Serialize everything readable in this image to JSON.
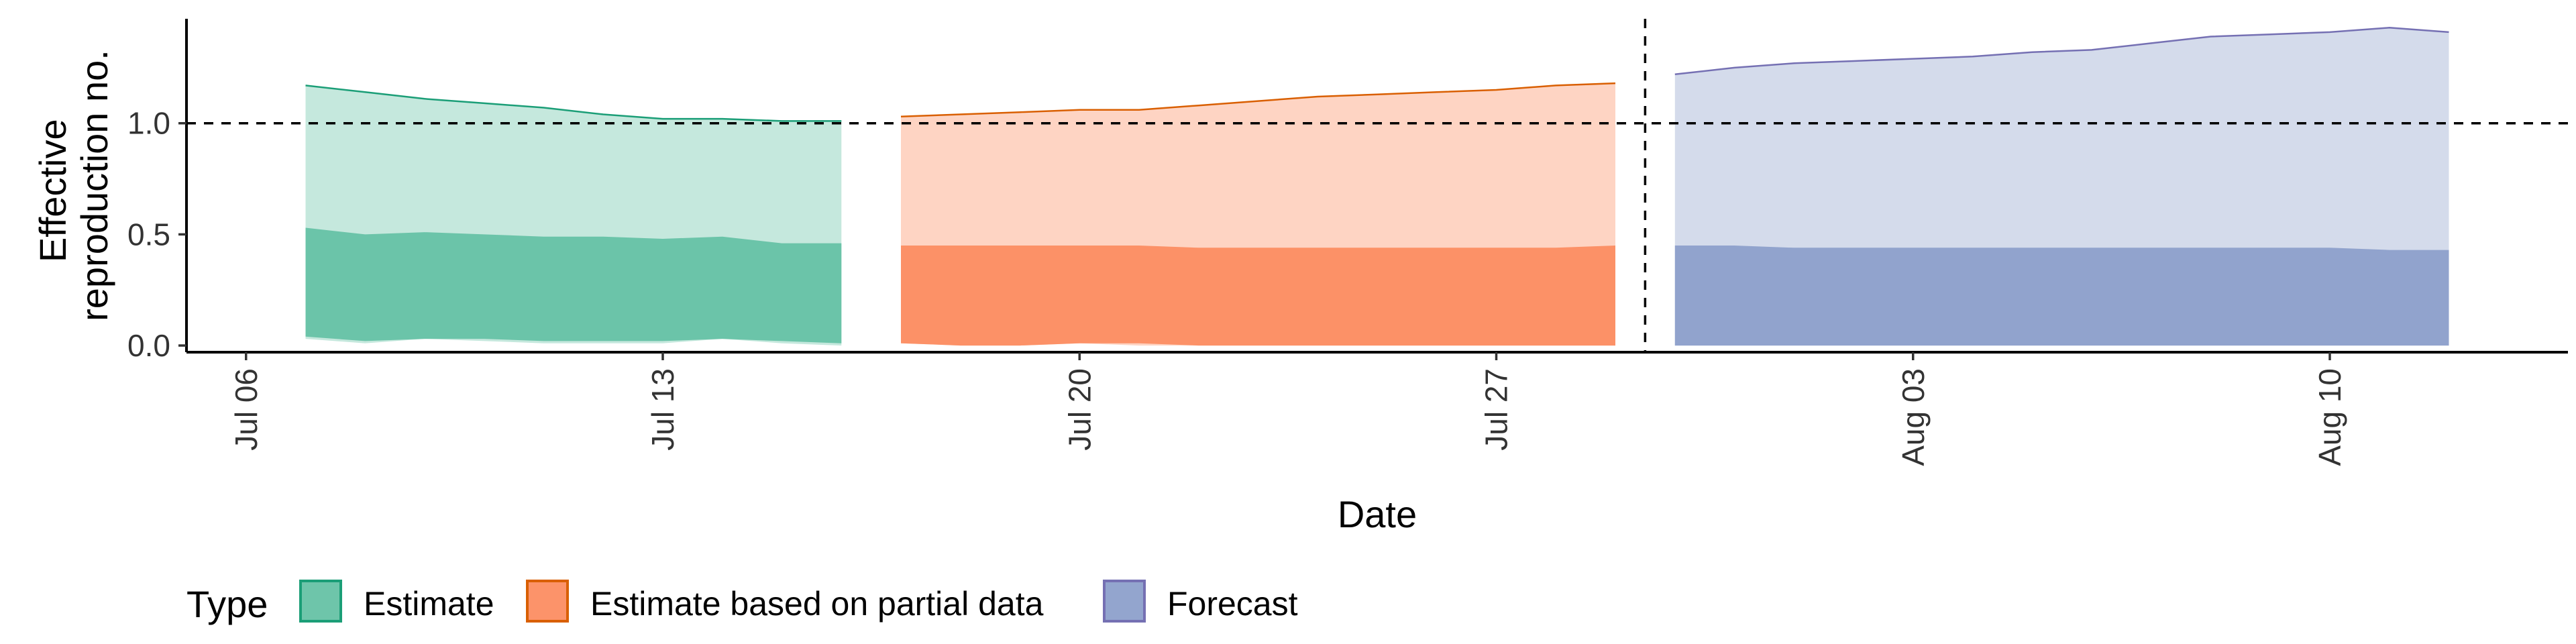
{
  "chart_data": {
    "type": "area",
    "xlabel": "Date",
    "ylabel_lines": [
      "Effective",
      "reproduction no."
    ],
    "x_ticks": [
      "Jul 06",
      "Jul 13",
      "Jul 20",
      "Jul 27",
      "Aug 03",
      "Aug 10"
    ],
    "x_tick_dates": [
      "2020-07-06",
      "2020-07-13",
      "2020-07-20",
      "2020-07-27",
      "2020-08-03",
      "2020-08-10"
    ],
    "x_range": [
      "2020-07-05",
      "2020-08-14"
    ],
    "y_ticks": [
      "0.0",
      "0.5",
      "1.0"
    ],
    "y_tick_values": [
      0.0,
      0.5,
      1.0
    ],
    "ylim": [
      -0.03,
      1.47
    ],
    "reference_line_y": 1.0,
    "forecast_boundary_date": "2020-07-29",
    "legend": {
      "title": "Type",
      "position": "bottom",
      "items": [
        "Estimate",
        "Estimate based on partial data",
        "Forecast"
      ]
    },
    "series": [
      {
        "name": "Estimate",
        "fill_color": "#66c2a5",
        "line_color": "#1b9e77",
        "dates": [
          "2020-07-07",
          "2020-07-08",
          "2020-07-09",
          "2020-07-10",
          "2020-07-11",
          "2020-07-12",
          "2020-07-13",
          "2020-07-14",
          "2020-07-15",
          "2020-07-16"
        ],
        "outer_upper": [
          1.17,
          1.14,
          1.11,
          1.09,
          1.07,
          1.04,
          1.02,
          1.02,
          1.01,
          1.01
        ],
        "outer_lower": [
          0.03,
          0.01,
          0.03,
          0.02,
          0.01,
          0.01,
          0.01,
          0.03,
          0.01,
          0.0
        ],
        "inner_upper": [
          0.53,
          0.5,
          0.51,
          0.5,
          0.49,
          0.49,
          0.48,
          0.49,
          0.46,
          0.46
        ],
        "inner_lower": [
          0.04,
          0.02,
          0.03,
          0.03,
          0.02,
          0.02,
          0.02,
          0.03,
          0.02,
          0.01
        ]
      },
      {
        "name": "Estimate based on partial data",
        "fill_color": "#fc8d62",
        "line_color": "#d95f02",
        "dates": [
          "2020-07-17",
          "2020-07-18",
          "2020-07-19",
          "2020-07-20",
          "2020-07-21",
          "2020-07-22",
          "2020-07-23",
          "2020-07-24",
          "2020-07-25",
          "2020-07-26",
          "2020-07-27",
          "2020-07-28",
          "2020-07-29"
        ],
        "outer_upper": [
          1.03,
          1.04,
          1.05,
          1.06,
          1.06,
          1.08,
          1.1,
          1.12,
          1.13,
          1.14,
          1.15,
          1.17,
          1.18
        ],
        "outer_lower": [
          0.01,
          0.0,
          0.0,
          0.01,
          0.0,
          0.0,
          0.0,
          0.0,
          0.0,
          0.0,
          0.0,
          0.0,
          0.0
        ],
        "inner_upper": [
          0.45,
          0.45,
          0.45,
          0.45,
          0.45,
          0.44,
          0.44,
          0.44,
          0.44,
          0.44,
          0.44,
          0.44,
          0.45
        ],
        "inner_lower": [
          0.01,
          0.0,
          0.0,
          0.01,
          0.01,
          0.0,
          0.0,
          0.0,
          0.0,
          0.0,
          0.0,
          0.0,
          0.0
        ]
      },
      {
        "name": "Forecast",
        "fill_color": "#8da0cb",
        "line_color": "#7570b3",
        "dates": [
          "2020-07-30",
          "2020-07-31",
          "2020-08-01",
          "2020-08-02",
          "2020-08-03",
          "2020-08-04",
          "2020-08-05",
          "2020-08-06",
          "2020-08-07",
          "2020-08-08",
          "2020-08-09",
          "2020-08-10",
          "2020-08-11",
          "2020-08-12"
        ],
        "outer_upper": [
          1.22,
          1.25,
          1.27,
          1.28,
          1.29,
          1.3,
          1.32,
          1.33,
          1.36,
          1.39,
          1.4,
          1.41,
          1.43,
          1.41
        ],
        "outer_lower": [
          0.0,
          0.0,
          0.0,
          0.0,
          0.0,
          0.0,
          0.0,
          0.0,
          0.0,
          0.0,
          0.0,
          0.0,
          0.0,
          0.0
        ],
        "inner_upper": [
          0.45,
          0.45,
          0.44,
          0.44,
          0.44,
          0.44,
          0.44,
          0.44,
          0.44,
          0.44,
          0.44,
          0.44,
          0.43,
          0.43
        ],
        "inner_lower": [
          0.0,
          0.0,
          0.0,
          0.0,
          0.0,
          0.0,
          0.0,
          0.0,
          0.0,
          0.0,
          0.0,
          0.0,
          0.0,
          0.0
        ]
      }
    ]
  }
}
